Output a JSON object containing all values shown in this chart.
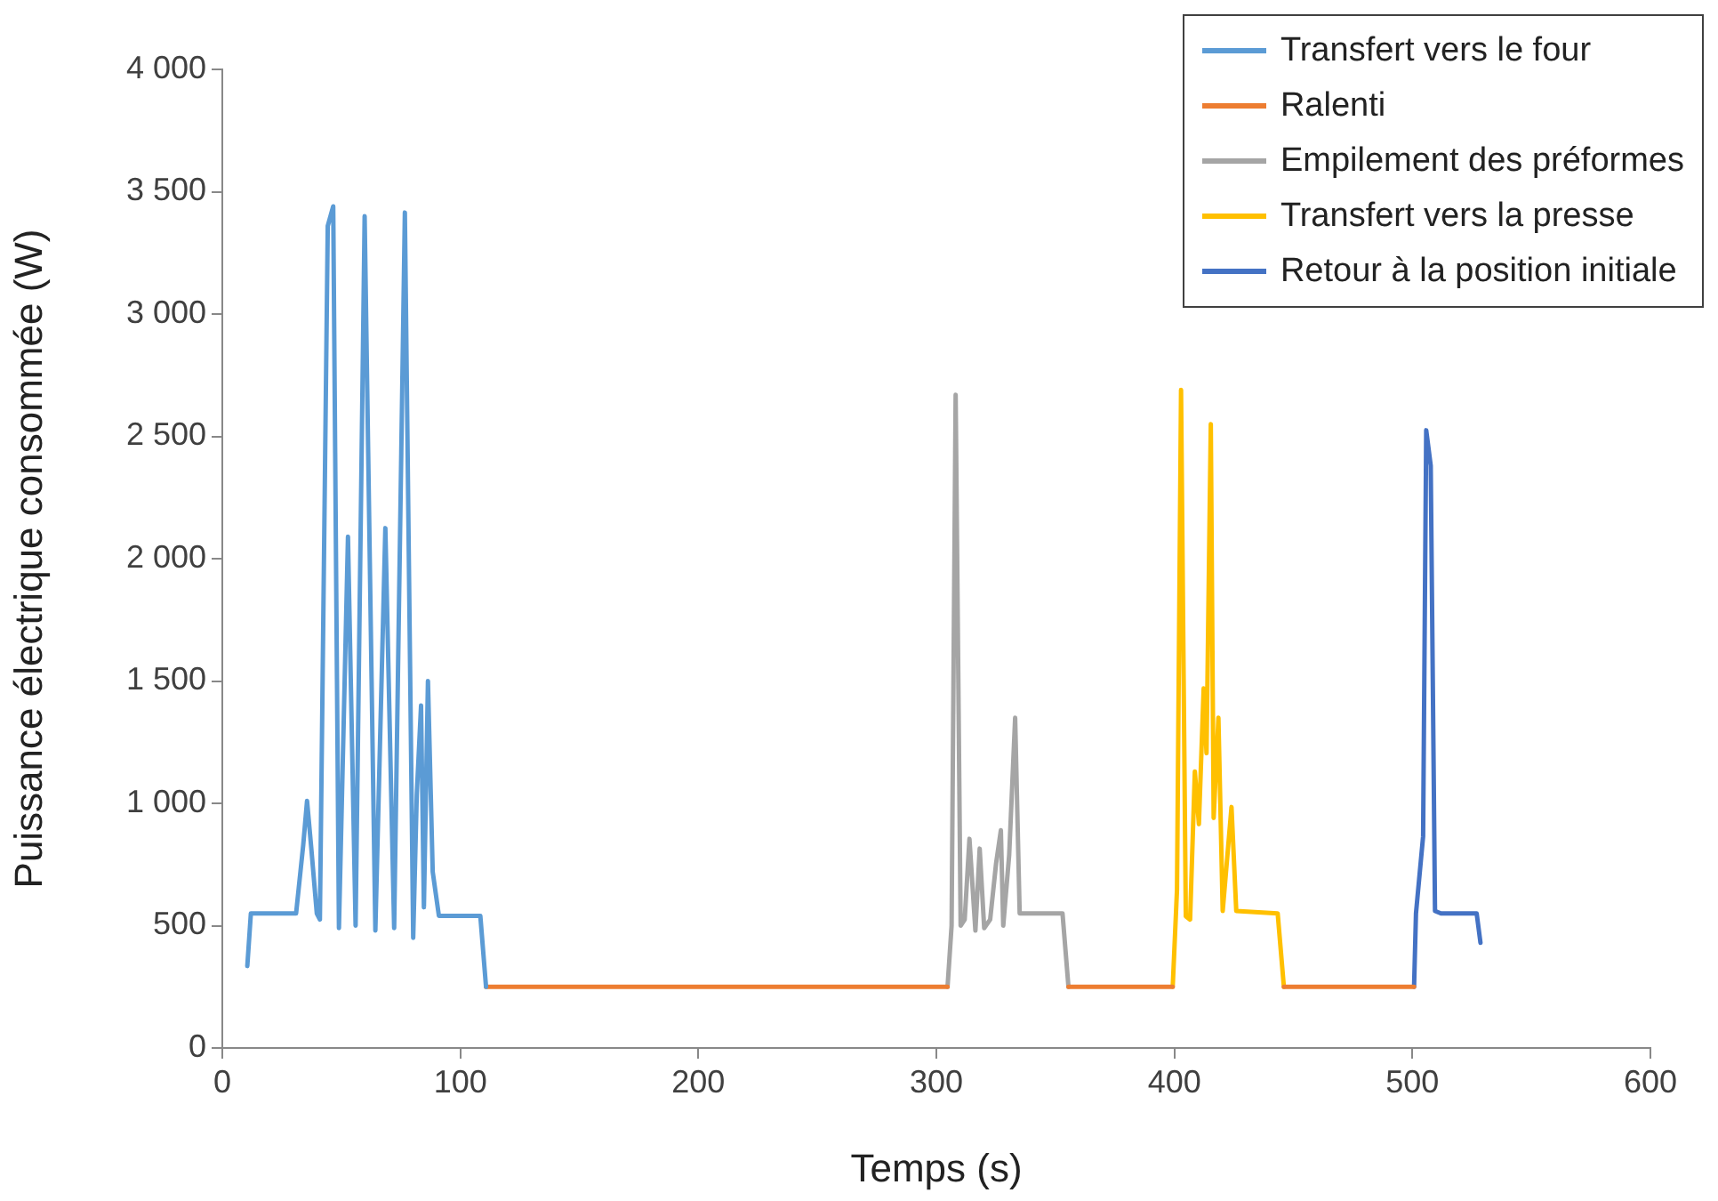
{
  "chart_data": {
    "type": "line",
    "xlabel": "Temps (s)",
    "ylabel": "Puissance électrique consommée (W)",
    "xlim": [
      0,
      600
    ],
    "xticks": [
      0,
      100,
      200,
      300,
      400,
      500,
      600
    ],
    "ylim": [
      0,
      4000
    ],
    "yticks": [
      0,
      500,
      {
        "value": 1000,
        "label": "1 000"
      },
      {
        "value": 1500,
        "label": "1 500"
      },
      {
        "value": 2000,
        "label": "2 000"
      },
      {
        "value": 2500,
        "label": "2 500"
      },
      {
        "value": 3000,
        "label": "3 000"
      },
      {
        "value": 3500,
        "label": "3 500"
      },
      {
        "value": 4000,
        "label": "4 000"
      }
    ],
    "grid": false,
    "legend": "top right",
    "marker": "none",
    "line_style": "solid",
    "series": [
      {
        "name": "Transfert vers le four",
        "color": "#5b9bd5",
        "x": [
          10.5,
          12,
          31,
          34,
          35.6,
          37.4,
          39.7,
          41,
          44.3,
          46.6,
          49,
          52.8,
          56,
          59.8,
          64.3,
          68.5,
          72.2,
          76.7,
          80.2,
          81.7,
          83.5,
          84.7,
          86.4,
          88.4,
          91,
          108.4,
          110.8
        ],
        "values": [
          335,
          550,
          550,
          830,
          1010,
          815,
          550,
          525,
          3360,
          3440,
          490,
          2090,
          500,
          3400,
          480,
          2125,
          490,
          3415,
          450,
          1035,
          1400,
          575,
          1500,
          720,
          540,
          540,
          250
        ]
      },
      {
        "name": "Ralenti",
        "color": "#ed7d31",
        "x": [
          110.8,
          304.7,
          330,
          355.5,
          399.3,
          420,
          446,
          500.7
        ],
        "values": [
          250,
          250,
          null,
          250,
          250,
          null,
          250,
          250
        ]
      },
      {
        "name": "Empilement des préformes",
        "color": "#a5a5a5",
        "x": [
          304.7,
          306.4,
          308.1,
          310.2,
          311.9,
          313.9,
          316.4,
          318.2,
          320.1,
          322.6,
          325.1,
          327.1,
          328.1,
          330.6,
          333.1,
          335,
          353,
          355.5
        ],
        "values": [
          250,
          500,
          2670,
          500,
          525,
          855,
          480,
          815,
          490,
          525,
          755,
          890,
          500,
          790,
          1350,
          550,
          550,
          250
        ]
      },
      {
        "name": "Transfert vers la presse",
        "color": "#ffc000",
        "x": [
          399.3,
          401.1,
          402.8,
          404.8,
          406.6,
          408.6,
          410.3,
          412.3,
          413.5,
          415.3,
          416.5,
          418.5,
          420.3,
          424,
          426,
          443.4,
          446
        ],
        "values": [
          250,
          647,
          2690,
          538,
          525,
          1130,
          915,
          1470,
          1205,
          2550,
          940,
          1350,
          560,
          985,
          560,
          550,
          250
        ]
      },
      {
        "name": "Retour à la position initiale",
        "color": "#4472c4",
        "x": [
          500.7,
          501.5,
          504.5,
          505.8,
          507.7,
          509.5,
          512,
          527,
          528.6
        ],
        "values": [
          250,
          550,
          865,
          2525,
          2380,
          560,
          550,
          550,
          430
        ]
      }
    ]
  }
}
